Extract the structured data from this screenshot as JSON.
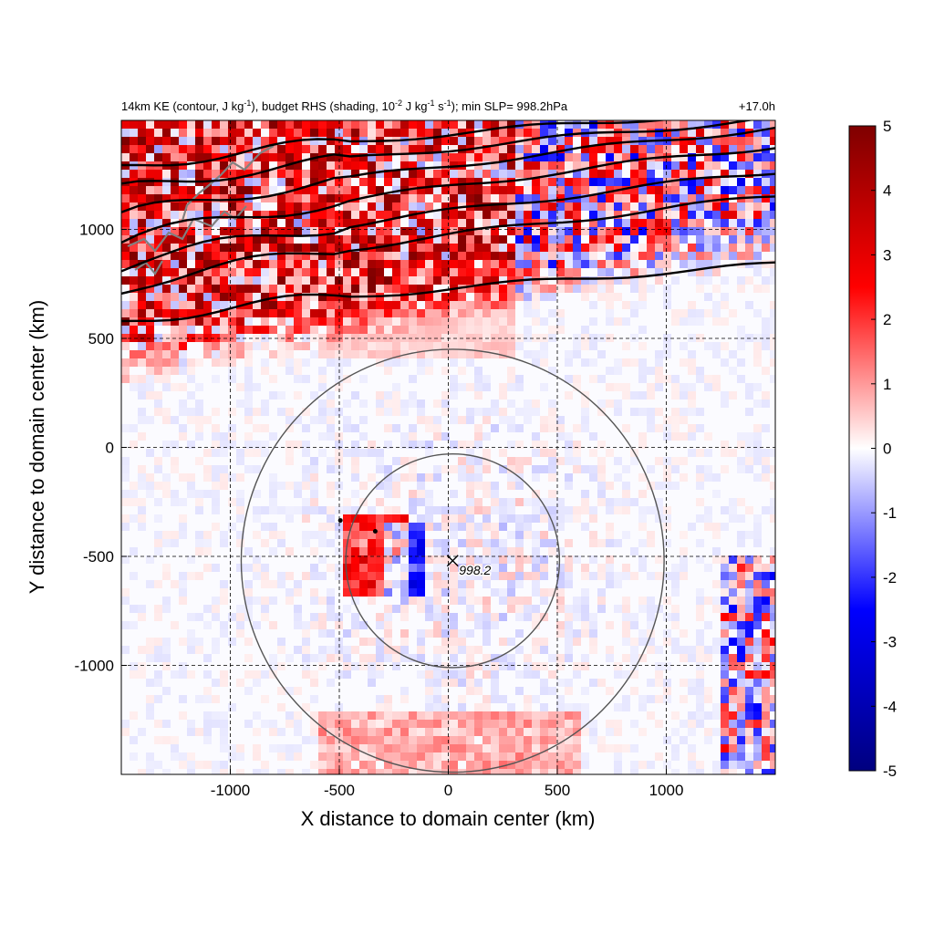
{
  "chart_data": {
    "type": "heatmap",
    "title_left_parts": {
      "p1": "14km KE (contour, J kg",
      "p1_sup": "-1",
      "p2": "), budget RHS (shading, 10",
      "p2_sup": "-2",
      "p3": " J kg",
      "p3_sup": "-1",
      "p4": " s",
      "p4_sup": "-1",
      "p5": "); min SLP= 998.2hPa"
    },
    "title_right": "+17.0h",
    "xlabel": "X distance to domain center (km)",
    "ylabel": "Y distance to domain center (km)",
    "xlim": [
      -1500,
      1500
    ],
    "ylim": [
      -1500,
      1500
    ],
    "x_ticks": [
      -1000,
      -500,
      0,
      500,
      1000
    ],
    "y_ticks": [
      -1000,
      -500,
      0,
      500,
      1000
    ],
    "x_tick_labels": [
      "-1000",
      "-500",
      "0",
      "500",
      "1000"
    ],
    "y_tick_labels": [
      "-1000",
      "-500",
      "0",
      "500",
      "1000"
    ],
    "grid": true,
    "colorbar": {
      "min": -5,
      "max": 5,
      "ticks": [
        5,
        4,
        3,
        2,
        1,
        0,
        -1,
        -2,
        -3,
        -4,
        -5
      ],
      "colormap": [
        "#00007f",
        "#0000ff",
        "#ffffff",
        "#ff0000",
        "#7f0000"
      ]
    },
    "storm_center": {
      "x": 20,
      "y": -520,
      "label": "998.2"
    },
    "range_rings_km": [
      490,
      970
    ],
    "markers": [
      {
        "x": -495,
        "y": -335
      },
      {
        "x": -335,
        "y": -385
      }
    ],
    "colors": {
      "positive": "#ff0000",
      "negative": "#0000ff",
      "contour": "#000000",
      "coastline": "#808080",
      "rings": "#555555"
    }
  }
}
